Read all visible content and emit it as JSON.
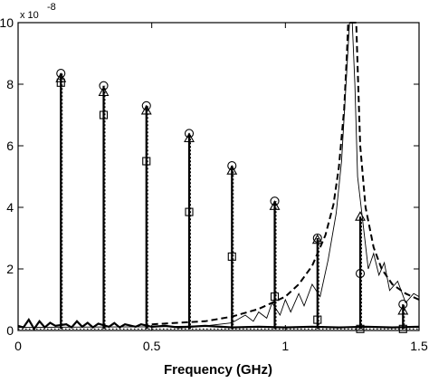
{
  "chart_data": {
    "type": "line",
    "title": "",
    "xlabel": "Frequency (GHz)",
    "ylabel": "",
    "y_exponent_label": "x 10",
    "y_exponent_power": "-8",
    "xlim": [
      0,
      1.5
    ],
    "ylim": [
      0,
      10
    ],
    "x_ticks": [
      0,
      0.5,
      1,
      1.5
    ],
    "x_tick_labels": [
      "0",
      "0.5",
      "1",
      "1.5"
    ],
    "y_ticks": [
      0,
      2,
      4,
      6,
      8,
      10
    ],
    "y_tick_labels": [
      "0",
      "2",
      "4",
      "6",
      "8",
      "10"
    ],
    "grid": false,
    "peaks_x": [
      0.16,
      0.32,
      0.48,
      0.64,
      0.8,
      0.96,
      1.12,
      1.28,
      1.44
    ],
    "series": [
      {
        "marker": "circle",
        "points": [
          [
            0.16,
            8.35
          ],
          [
            0.32,
            7.95
          ],
          [
            0.48,
            7.3
          ],
          [
            0.64,
            6.4
          ],
          [
            0.8,
            5.35
          ],
          [
            0.96,
            4.2
          ],
          [
            1.12,
            3.0
          ],
          [
            1.28,
            1.85
          ],
          [
            1.44,
            0.85
          ]
        ]
      },
      {
        "marker": "triangle",
        "points": [
          [
            0.16,
            8.2
          ],
          [
            0.32,
            7.75
          ],
          [
            0.48,
            7.15
          ],
          [
            0.64,
            6.25
          ],
          [
            0.8,
            5.2
          ],
          [
            0.96,
            4.05
          ],
          [
            1.12,
            2.95
          ],
          [
            1.28,
            3.7
          ],
          [
            1.44,
            0.65
          ]
        ]
      },
      {
        "marker": "square",
        "points": [
          [
            0.16,
            8.05
          ],
          [
            0.32,
            7.0
          ],
          [
            0.48,
            5.5
          ],
          [
            0.64,
            3.85
          ],
          [
            0.8,
            2.4
          ],
          [
            0.96,
            1.1
          ],
          [
            1.12,
            0.35
          ],
          [
            1.28,
            0.05
          ],
          [
            1.44,
            0.05
          ]
        ]
      }
    ],
    "dashed_resonance_curve": [
      [
        0.5,
        0.2
      ],
      [
        0.7,
        0.3
      ],
      [
        0.8,
        0.45
      ],
      [
        0.9,
        0.7
      ],
      [
        1.0,
        1.1
      ],
      [
        1.05,
        1.5
      ],
      [
        1.1,
        2.1
      ],
      [
        1.15,
        3.1
      ],
      [
        1.18,
        4.1
      ],
      [
        1.2,
        5.3
      ],
      [
        1.22,
        7.2
      ],
      [
        1.23,
        9.0
      ],
      [
        1.235,
        10.0
      ],
      [
        1.265,
        10.0
      ],
      [
        1.27,
        8.6
      ],
      [
        1.28,
        6.0
      ],
      [
        1.3,
        4.0
      ],
      [
        1.33,
        2.7
      ],
      [
        1.36,
        2.0
      ],
      [
        1.4,
        1.5
      ],
      [
        1.45,
        1.2
      ],
      [
        1.5,
        1.0
      ]
    ],
    "thin_solid_curve": [
      [
        0.0,
        0.1
      ],
      [
        0.5,
        0.12
      ],
      [
        0.7,
        0.15
      ],
      [
        0.8,
        0.25
      ],
      [
        0.85,
        0.5
      ],
      [
        0.88,
        0.3
      ],
      [
        0.9,
        0.6
      ],
      [
        0.93,
        0.4
      ],
      [
        0.95,
        0.9
      ],
      [
        0.98,
        0.5
      ],
      [
        1.0,
        1.0
      ],
      [
        1.02,
        0.6
      ],
      [
        1.05,
        1.2
      ],
      [
        1.07,
        0.8
      ],
      [
        1.1,
        1.5
      ],
      [
        1.13,
        1.1
      ],
      [
        1.16,
        2.3
      ],
      [
        1.19,
        3.8
      ],
      [
        1.21,
        5.5
      ],
      [
        1.23,
        8.5
      ],
      [
        1.24,
        10.0
      ],
      [
        1.25,
        10.0
      ],
      [
        1.26,
        8.0
      ],
      [
        1.27,
        5.0
      ],
      [
        1.29,
        3.5
      ],
      [
        1.31,
        2.0
      ],
      [
        1.33,
        2.5
      ],
      [
        1.35,
        1.8
      ],
      [
        1.37,
        2.2
      ],
      [
        1.39,
        1.3
      ],
      [
        1.42,
        1.6
      ],
      [
        1.45,
        0.9
      ],
      [
        1.48,
        1.2
      ],
      [
        1.5,
        1.1
      ]
    ],
    "noise_floor_thick": [
      [
        0.0,
        0.15
      ],
      [
        0.02,
        0.1
      ],
      [
        0.04,
        0.35
      ],
      [
        0.06,
        0.05
      ],
      [
        0.08,
        0.3
      ],
      [
        0.1,
        0.1
      ],
      [
        0.12,
        0.25
      ],
      [
        0.14,
        0.15
      ],
      [
        0.18,
        0.2
      ],
      [
        0.2,
        0.1
      ],
      [
        0.22,
        0.3
      ],
      [
        0.24,
        0.12
      ],
      [
        0.26,
        0.25
      ],
      [
        0.28,
        0.1
      ],
      [
        0.3,
        0.22
      ],
      [
        0.34,
        0.12
      ],
      [
        0.36,
        0.24
      ],
      [
        0.38,
        0.1
      ],
      [
        0.4,
        0.2
      ],
      [
        0.44,
        0.12
      ],
      [
        0.46,
        0.2
      ],
      [
        0.5,
        0.12
      ],
      [
        0.55,
        0.15
      ],
      [
        0.6,
        0.1
      ],
      [
        0.7,
        0.15
      ],
      [
        0.8,
        0.1
      ],
      [
        0.9,
        0.12
      ],
      [
        1.0,
        0.1
      ],
      [
        1.1,
        0.12
      ],
      [
        1.2,
        0.1
      ],
      [
        1.3,
        0.12
      ],
      [
        1.4,
        0.1
      ],
      [
        1.5,
        0.12
      ]
    ],
    "dotted_baseline": [
      [
        0.0,
        0.05
      ],
      [
        1.5,
        0.05
      ]
    ]
  }
}
